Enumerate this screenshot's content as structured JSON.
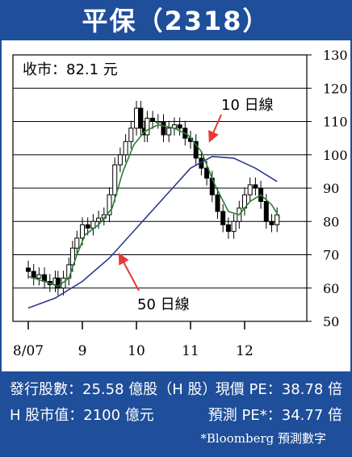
{
  "header": {
    "title": "平保（2318）"
  },
  "chart_data": {
    "type": "candlestick",
    "close_label": "收市：82.1 元",
    "ylim": [
      50,
      130
    ],
    "y_ticks": [
      50,
      60,
      70,
      80,
      90,
      100,
      110,
      120,
      130
    ],
    "x_labels": [
      {
        "label": "8/07",
        "x": 0
      },
      {
        "label": "9",
        "x": 1
      },
      {
        "label": "10",
        "x": 2
      },
      {
        "label": "11",
        "x": 3
      },
      {
        "label": "12",
        "x": 4
      }
    ],
    "x_range": [
      0,
      5
    ],
    "grid": "horizontal",
    "price": [
      {
        "x": 0.0,
        "close": 65
      },
      {
        "x": 0.1,
        "close": 63
      },
      {
        "x": 0.2,
        "close": 64
      },
      {
        "x": 0.3,
        "close": 62
      },
      {
        "x": 0.4,
        "close": 61
      },
      {
        "x": 0.5,
        "close": 63
      },
      {
        "x": 0.55,
        "close": 60
      },
      {
        "x": 0.65,
        "close": 63
      },
      {
        "x": 0.75,
        "close": 67
      },
      {
        "x": 0.82,
        "close": 72
      },
      {
        "x": 0.9,
        "close": 75
      },
      {
        "x": 1.0,
        "close": 79
      },
      {
        "x": 1.1,
        "close": 78
      },
      {
        "x": 1.2,
        "close": 80
      },
      {
        "x": 1.3,
        "close": 81
      },
      {
        "x": 1.4,
        "close": 82
      },
      {
        "x": 1.5,
        "close": 88
      },
      {
        "x": 1.6,
        "close": 97
      },
      {
        "x": 1.7,
        "close": 100
      },
      {
        "x": 1.8,
        "close": 104
      },
      {
        "x": 1.9,
        "close": 108
      },
      {
        "x": 2.0,
        "close": 114
      },
      {
        "x": 2.08,
        "close": 108
      },
      {
        "x": 2.15,
        "close": 106
      },
      {
        "x": 2.2,
        "close": 111
      },
      {
        "x": 2.3,
        "close": 110
      },
      {
        "x": 2.4,
        "close": 110
      },
      {
        "x": 2.5,
        "close": 106
      },
      {
        "x": 2.6,
        "close": 108
      },
      {
        "x": 2.7,
        "close": 109
      },
      {
        "x": 2.8,
        "close": 108
      },
      {
        "x": 2.9,
        "close": 105
      },
      {
        "x": 3.0,
        "close": 104
      },
      {
        "x": 3.1,
        "close": 99
      },
      {
        "x": 3.2,
        "close": 96
      },
      {
        "x": 3.3,
        "close": 93
      },
      {
        "x": 3.4,
        "close": 88
      },
      {
        "x": 3.5,
        "close": 83
      },
      {
        "x": 3.6,
        "close": 79
      },
      {
        "x": 3.7,
        "close": 77
      },
      {
        "x": 3.8,
        "close": 80
      },
      {
        "x": 3.9,
        "close": 84
      },
      {
        "x": 4.0,
        "close": 88
      },
      {
        "x": 4.1,
        "close": 91
      },
      {
        "x": 4.2,
        "close": 90
      },
      {
        "x": 4.3,
        "close": 86
      },
      {
        "x": 4.4,
        "close": 80
      },
      {
        "x": 4.5,
        "close": 79
      },
      {
        "x": 4.6,
        "close": 82
      }
    ],
    "series": [
      {
        "name": "10 日線",
        "color": "#2e7d32",
        "points": [
          {
            "x": 0.0,
            "y": 63.5
          },
          {
            "x": 0.3,
            "y": 62
          },
          {
            "x": 0.55,
            "y": 60.5
          },
          {
            "x": 0.75,
            "y": 63
          },
          {
            "x": 0.9,
            "y": 70
          },
          {
            "x": 1.05,
            "y": 76
          },
          {
            "x": 1.3,
            "y": 79
          },
          {
            "x": 1.55,
            "y": 84
          },
          {
            "x": 1.75,
            "y": 95
          },
          {
            "x": 1.95,
            "y": 103
          },
          {
            "x": 2.15,
            "y": 107
          },
          {
            "x": 2.4,
            "y": 109
          },
          {
            "x": 2.7,
            "y": 108
          },
          {
            "x": 2.95,
            "y": 106
          },
          {
            "x": 3.2,
            "y": 101
          },
          {
            "x": 3.45,
            "y": 91
          },
          {
            "x": 3.7,
            "y": 83
          },
          {
            "x": 3.9,
            "y": 82
          },
          {
            "x": 4.1,
            "y": 86
          },
          {
            "x": 4.3,
            "y": 88
          },
          {
            "x": 4.5,
            "y": 85
          },
          {
            "x": 4.65,
            "y": 81
          }
        ]
      },
      {
        "name": "50 日線",
        "color": "#2b3a8f",
        "points": [
          {
            "x": 0.0,
            "y": 54
          },
          {
            "x": 0.5,
            "y": 57
          },
          {
            "x": 1.0,
            "y": 62
          },
          {
            "x": 1.5,
            "y": 69
          },
          {
            "x": 2.0,
            "y": 78
          },
          {
            "x": 2.5,
            "y": 87
          },
          {
            "x": 3.0,
            "y": 96
          },
          {
            "x": 3.4,
            "y": 99.5
          },
          {
            "x": 3.8,
            "y": 99
          },
          {
            "x": 4.2,
            "y": 96
          },
          {
            "x": 4.6,
            "y": 92
          }
        ]
      }
    ],
    "annotations": [
      {
        "text": "10 日線",
        "target_x": 3.35,
        "target_y": 103,
        "color": "#e53935"
      },
      {
        "text": "50 日線",
        "target_x": 1.65,
        "target_y": 71,
        "color": "#e53935"
      }
    ]
  },
  "footer": {
    "shares_issued": "發行股數：25.58 億股（H 股）",
    "current_pe": "現價 PE：38.78 倍",
    "h_market_cap": "H 股市值：2100 億元",
    "forecast_pe": "預測 PE*：34.77 倍",
    "note": "*Bloomberg 預測數字"
  }
}
